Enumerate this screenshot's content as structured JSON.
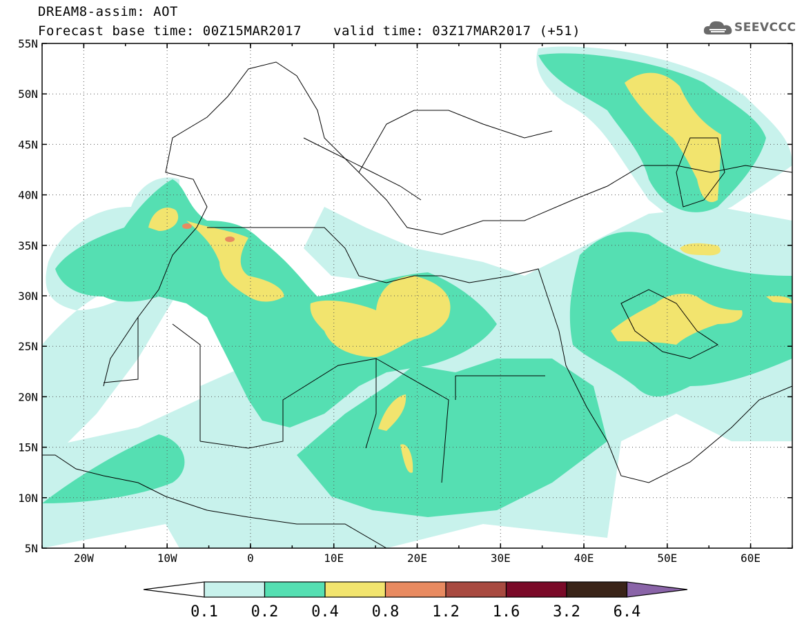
{
  "header": {
    "title": "DREAM8-assim: AOT",
    "base_time": "Forecast base time: 00Z15MAR2017",
    "valid_time": "valid time: 03Z17MAR2017 (+51)",
    "logo_text": "SEEVCCC",
    "logo_icon": "cloud-icon"
  },
  "map": {
    "lon_range": [
      -25,
      65
    ],
    "lat_range": [
      5,
      55
    ],
    "lat_labels": [
      "55N",
      "50N",
      "45N",
      "40N",
      "35N",
      "30N",
      "25N",
      "20N",
      "15N",
      "10N",
      "5N"
    ],
    "lon_labels": [
      "20W",
      "10W",
      "0",
      "10E",
      "20E",
      "30E",
      "40E",
      "50E",
      "60E"
    ],
    "field": "AOT"
  },
  "legend": {
    "levels": [
      "0.1",
      "0.2",
      "0.4",
      "0.8",
      "1.2",
      "1.6",
      "3.2",
      "6.4"
    ],
    "colors": [
      "#ffffff",
      "#c8f2ec",
      "#55dfb2",
      "#f2e46e",
      "#e88a60",
      "#a84a40",
      "#7a0a28",
      "#3a2418",
      "#8a64a8"
    ]
  }
}
